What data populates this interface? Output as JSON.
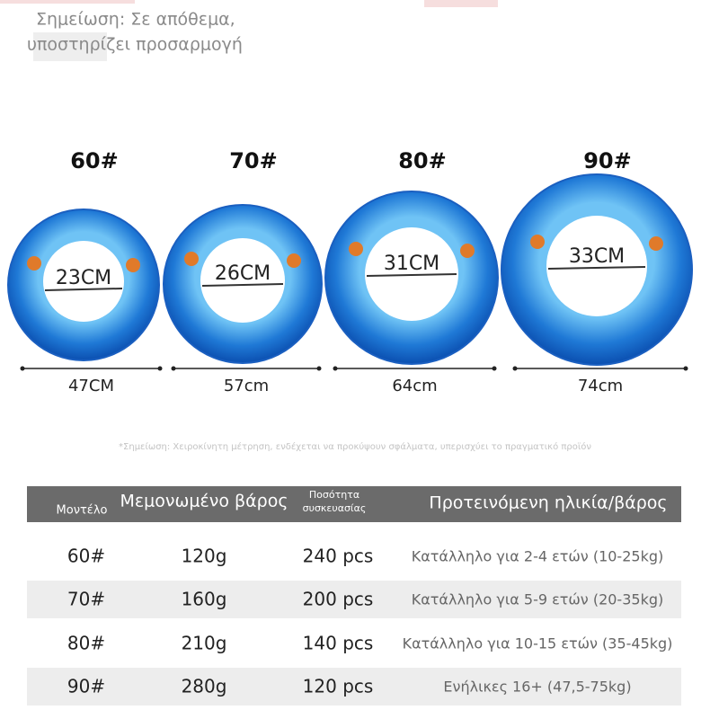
{
  "note": [
    "Σημείωση: Σε απόθεμα,",
    "υποστηρίζει προσαρμογή"
  ],
  "rings": [
    {
      "size": "60#",
      "inner": "23CM",
      "outer": "47CM"
    },
    {
      "size": "70#",
      "inner": "26CM",
      "outer": "57cm"
    },
    {
      "size": "80#",
      "inner": "31CM",
      "outer": "64cm"
    },
    {
      "size": "90#",
      "inner": "33CM",
      "outer": "74cm"
    }
  ],
  "disclaimer": "*Σημείωση: Χειροκίνητη μέτρηση, ενδέχεται να προκύψουν σφάλματα, υπερισχύει το πραγματικό προϊόν",
  "table": {
    "headers": [
      "Μοντέλο",
      "Μεμονωμένο βάρος",
      [
        "Ποσότητα",
        "συσκευασίας"
      ],
      "Προτεινόμενη ηλικία/βάρος"
    ],
    "rows": [
      [
        "60#",
        "120g",
        "240 pcs",
        "Κατάλληλο για 2-4 ετών (10-25kg)"
      ],
      [
        "70#",
        "160g",
        "200 pcs",
        "Κατάλληλο για 5-9 ετών (20-35kg)"
      ],
      [
        "80#",
        "210g",
        "140 pcs",
        "Κατάλληλο για 10-15 ετών (35-45kg)"
      ],
      [
        "90#",
        "280g",
        "120 pcs",
        "Ενήλικες 16+ (47,5-75kg)"
      ]
    ]
  }
}
